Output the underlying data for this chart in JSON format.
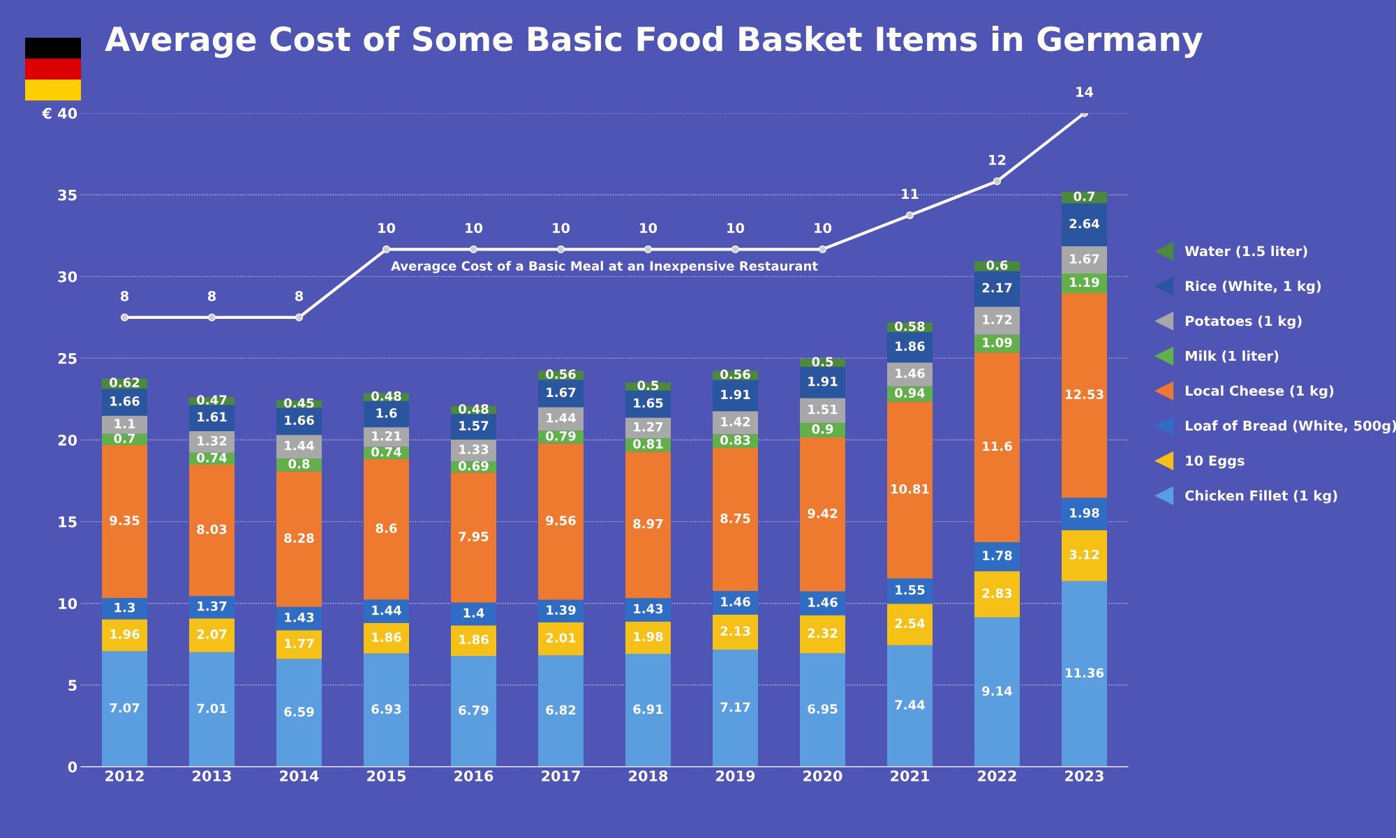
{
  "chart_data": {
    "type": "bar",
    "stacked": true,
    "title": "Average Cost of Some Basic Food Basket Items in Germany",
    "categories": [
      "2012",
      "2013",
      "2014",
      "2015",
      "2016",
      "2017",
      "2018",
      "2019",
      "2020",
      "2021",
      "2022",
      "2023"
    ],
    "series": [
      {
        "name": "Chicken Fillet (1 kg)",
        "color": "#5b9ee0",
        "values": [
          7.07,
          7.01,
          6.59,
          6.93,
          6.79,
          6.82,
          6.91,
          7.17,
          6.95,
          7.44,
          9.14,
          11.36
        ]
      },
      {
        "name": "10 Eggs",
        "color": "#f5c116",
        "values": [
          1.96,
          2.07,
          1.77,
          1.86,
          1.86,
          2.01,
          1.98,
          2.13,
          2.32,
          2.54,
          2.83,
          3.12
        ]
      },
      {
        "name": "Loaf of Bread (White, 500g)",
        "color": "#2f6cc4",
        "values": [
          1.3,
          1.37,
          1.43,
          1.44,
          1.4,
          1.39,
          1.43,
          1.46,
          1.46,
          1.55,
          1.78,
          1.98
        ]
      },
      {
        "name": "Local Cheese (1 kg)",
        "color": "#ee7a30",
        "values": [
          9.35,
          8.03,
          8.28,
          8.6,
          7.95,
          9.56,
          8.97,
          8.75,
          9.42,
          10.81,
          11.6,
          12.53
        ]
      },
      {
        "name": "Milk (1 liter)",
        "color": "#62b04a",
        "values": [
          0.7,
          0.74,
          0.8,
          0.74,
          0.69,
          0.79,
          0.81,
          0.83,
          0.9,
          0.94,
          1.09,
          1.19
        ]
      },
      {
        "name": "Potatoes (1 kg)",
        "color": "#a8a8a8",
        "values": [
          1.1,
          1.32,
          1.44,
          1.21,
          1.33,
          1.44,
          1.27,
          1.42,
          1.51,
          1.46,
          1.72,
          1.67
        ]
      },
      {
        "name": "Rice (White, 1 kg)",
        "color": "#2a56a0",
        "values": [
          1.66,
          1.61,
          1.66,
          1.6,
          1.57,
          1.67,
          1.65,
          1.91,
          1.91,
          1.86,
          2.17,
          2.64
        ]
      },
      {
        "name": "Water (1.5 liter)",
        "color": "#4a8a3a",
        "values": [
          0.62,
          0.47,
          0.45,
          0.48,
          0.48,
          0.56,
          0.5,
          0.56,
          0.5,
          0.58,
          0.6,
          0.7
        ]
      },
      {
        "name": "Averagce Cost of a Basic Meal at an Inexpensive Restaurant",
        "type": "line",
        "axis": "y2",
        "color": "#ffffff",
        "values": [
          8,
          8,
          8,
          10,
          10,
          10,
          10,
          10,
          10,
          11,
          12,
          14
        ]
      }
    ],
    "ylim": [
      0,
      40
    ],
    "yticks": [
      0,
      5,
      10,
      15,
      20,
      25,
      30,
      35,
      {
        "value": 40,
        "label": "€ 40"
      }
    ],
    "grid": "y",
    "legend": "right",
    "data_labels": true,
    "marker": "circle"
  }
}
